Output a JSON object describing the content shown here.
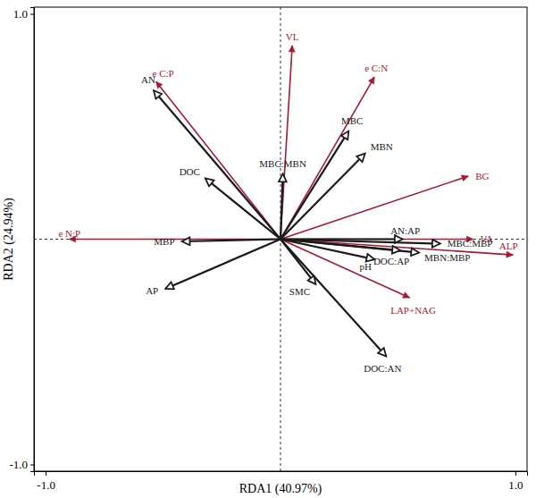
{
  "chart_data": {
    "type": "biplot",
    "x_label": "RDA1 (40.97%)",
    "y_label": "RDA2 (24.94%)",
    "xlim": [
      -1.05,
      1.05
    ],
    "ylim": [
      -1.03,
      1.03
    ],
    "xticks": [
      {
        "value": -1.0,
        "label": "-1.0"
      },
      {
        "value": 1.0,
        "label": "1.0"
      }
    ],
    "yticks": [
      {
        "value": -1.0,
        "label": "-1.0"
      },
      {
        "value": 1.0,
        "label": "1.0"
      }
    ],
    "series": [
      {
        "color": "#a01c32",
        "marker": "arrow",
        "points": [
          {
            "label": "VL",
            "x": 0.05,
            "y": 0.86
          },
          {
            "label": "e C:P",
            "x": -0.53,
            "y": 0.7
          },
          {
            "label": "e C:N",
            "x": 0.4,
            "y": 0.72
          },
          {
            "label": "BG",
            "x": 0.8,
            "y": 0.28
          },
          {
            "label": "e N:P",
            "x": -0.9,
            "y": 0.0
          },
          {
            "label": "VA",
            "x": 0.82,
            "y": 0.0
          },
          {
            "label": "ALP",
            "x": 0.99,
            "y": -0.07
          },
          {
            "label": "LAP+NAG",
            "x": 0.55,
            "y": -0.26
          }
        ]
      },
      {
        "color": "#1a1a1a",
        "marker": "open-arrow",
        "points": [
          {
            "label": "AN",
            "x": -0.54,
            "y": 0.66
          },
          {
            "label": "DOC",
            "x": -0.32,
            "y": 0.27
          },
          {
            "label": "MBC:MBN",
            "x": 0.01,
            "y": 0.29
          },
          {
            "label": "MBC",
            "x": 0.29,
            "y": 0.48
          },
          {
            "label": "MBN",
            "x": 0.36,
            "y": 0.38
          },
          {
            "label": "MBP",
            "x": -0.42,
            "y": -0.01
          },
          {
            "label": "AP",
            "x": -0.49,
            "y": -0.22
          },
          {
            "label": "AN:AP",
            "x": 0.52,
            "y": 0.0
          },
          {
            "label": "MBC:MBP",
            "x": 0.68,
            "y": -0.02
          },
          {
            "label": "MBN:MBP",
            "x": 0.59,
            "y": -0.06
          },
          {
            "label": "DOC:AP",
            "x": 0.51,
            "y": -0.05
          },
          {
            "label": "pH",
            "x": 0.4,
            "y": -0.09
          },
          {
            "label": "SMC",
            "x": 0.15,
            "y": -0.2
          },
          {
            "label": "DOC:AN",
            "x": 0.45,
            "y": -0.52
          }
        ]
      }
    ]
  }
}
